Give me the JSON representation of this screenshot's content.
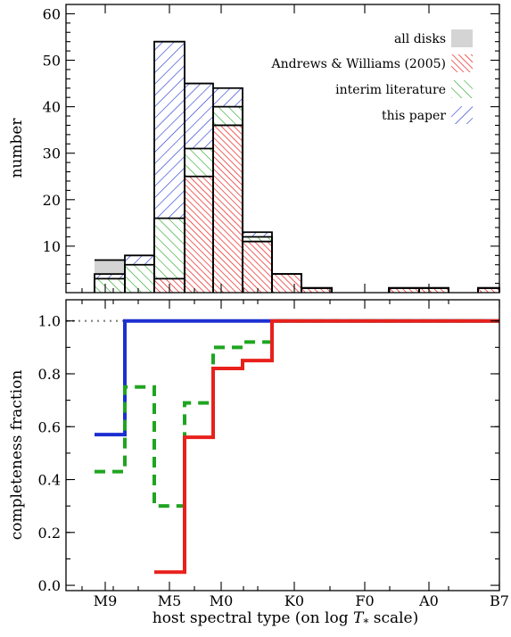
{
  "chart_data": [
    {
      "type": "bar",
      "panel": "top",
      "ylabel": "number",
      "ylim": [
        0,
        62
      ],
      "yticks": [
        10,
        20,
        30,
        40,
        50,
        60
      ],
      "bins": [
        "M9-M8",
        "M8-M6",
        "M6-M4",
        "M4-M2",
        "M2-M0",
        "M0-K5",
        "K5-K0",
        "K0-G5",
        "A3-A0",
        "A0-B9",
        "B8-B7"
      ],
      "series": [
        {
          "name": "all disks",
          "color": "#d4d4d4",
          "values": [
            7,
            8,
            54,
            45,
            44,
            13,
            4,
            1,
            1,
            1,
            1
          ]
        },
        {
          "name": "Andrews & Williams (2005)",
          "color": "#e8201c",
          "values": [
            0,
            0,
            3,
            25,
            36,
            11,
            4,
            1,
            1,
            1,
            1
          ]
        },
        {
          "name": "interim literature",
          "color": "#1fa520",
          "values": [
            3,
            6,
            16,
            31,
            40,
            12,
            4,
            1,
            1,
            1,
            1
          ]
        },
        {
          "name": "this paper",
          "color": "#1c2fd0",
          "values": [
            4,
            8,
            54,
            45,
            44,
            13,
            4,
            1,
            1,
            1,
            1
          ]
        }
      ]
    },
    {
      "type": "line",
      "panel": "bottom",
      "ylabel": "completeness fraction",
      "xlabel": "host spectral type (on log T* scale)",
      "ylim": [
        -0.02,
        1.08
      ],
      "yticks": [
        "0.0",
        "0.2",
        "0.4",
        "0.6",
        "0.8",
        "1.0"
      ],
      "xticks": [
        "M9",
        "M5",
        "M0",
        "K0",
        "F0",
        "A0",
        "B7"
      ],
      "reference_line": {
        "y": 1.0,
        "style": "dotted",
        "color": "#808080"
      },
      "series": [
        {
          "name": "this paper",
          "color": "#1c2fd0",
          "style": "solid",
          "steps": [
            [
              "M9-M8",
              0.57
            ],
            [
              "M8-B7",
              1.0
            ]
          ]
        },
        {
          "name": "interim literature",
          "color": "#1fa520",
          "style": "dashed",
          "steps": [
            [
              "M9-M8",
              0.43
            ],
            [
              "M8-M6",
              0.75
            ],
            [
              "M6-M4",
              0.3
            ],
            [
              "M4-M2",
              0.69
            ],
            [
              "M2-M0",
              0.9
            ],
            [
              "M0-K5",
              0.92
            ],
            [
              "K5-B7",
              1.0
            ]
          ]
        },
        {
          "name": "Andrews & Williams (2005)",
          "color": "#e8201c",
          "style": "solid",
          "steps": [
            [
              "M6-M4",
              0.05
            ],
            [
              "M4-M2",
              0.56
            ],
            [
              "M2-M0",
              0.82
            ],
            [
              "M0-K5",
              0.85
            ],
            [
              "K5-B7",
              1.0
            ]
          ]
        }
      ]
    }
  ]
}
